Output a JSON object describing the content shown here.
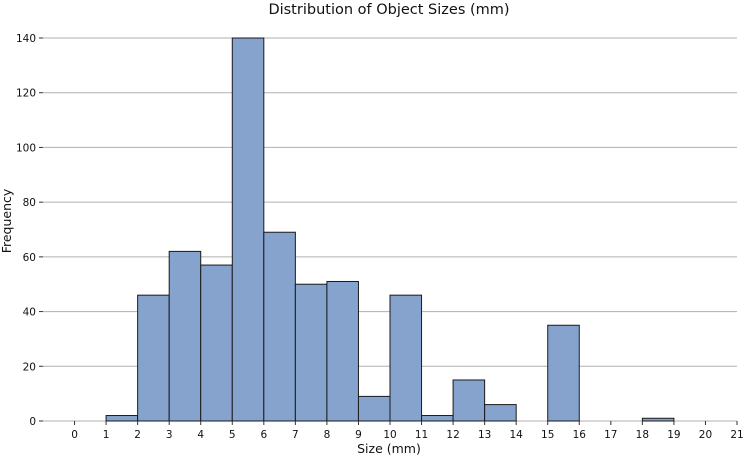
{
  "chart_data": {
    "type": "bar",
    "title": "Distribution of Object Sizes (mm)",
    "xlabel": "Size (mm)",
    "ylabel": "Frequency",
    "xlim": [
      -1,
      21
    ],
    "ylim": [
      0,
      140
    ],
    "x_ticks": [
      0,
      1,
      2,
      3,
      4,
      5,
      6,
      7,
      8,
      9,
      10,
      11,
      12,
      13,
      14,
      15,
      16,
      17,
      18,
      19,
      20,
      21
    ],
    "y_ticks": [
      0,
      20,
      40,
      60,
      80,
      100,
      120,
      140
    ],
    "grid": "horizontal",
    "bin_width": 1,
    "bins": [
      {
        "start": 1,
        "value": 2
      },
      {
        "start": 2,
        "value": 46
      },
      {
        "start": 3,
        "value": 62
      },
      {
        "start": 4,
        "value": 57
      },
      {
        "start": 5,
        "value": 140
      },
      {
        "start": 6,
        "value": 69
      },
      {
        "start": 7,
        "value": 50
      },
      {
        "start": 8,
        "value": 51
      },
      {
        "start": 9,
        "value": 9
      },
      {
        "start": 10,
        "value": 46
      },
      {
        "start": 11,
        "value": 2
      },
      {
        "start": 12,
        "value": 15
      },
      {
        "start": 13,
        "value": 6
      },
      {
        "start": 15,
        "value": 35
      },
      {
        "start": 18,
        "value": 1
      }
    ],
    "bar_color": "#86a3ce",
    "edge_color": "#1a1a1a"
  }
}
